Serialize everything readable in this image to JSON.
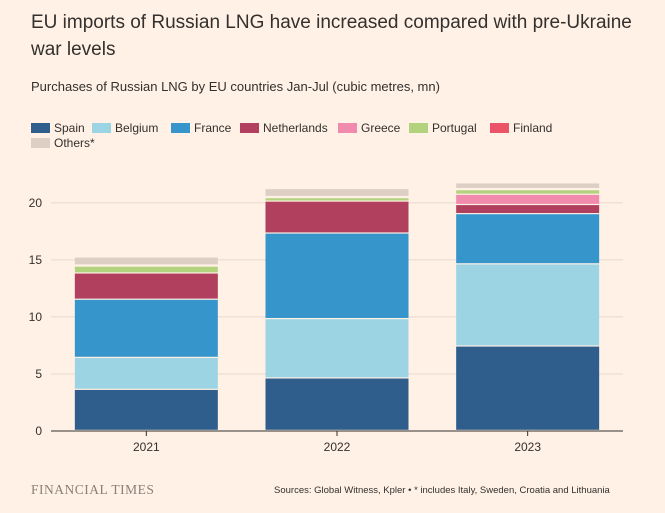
{
  "title": "EU imports of Russian LNG have increased compared with pre-Ukraine war levels",
  "subtitle": "Purchases of Russian LNG by EU countries Jan-Jul (cubic metres, mn)",
  "source": "Sources: Global Witness, Kpler • * includes Italy, Sweden, Croatia and Lithuania",
  "brand": "FINANCIAL TIMES",
  "chart_data": {
    "type": "bar",
    "stacked": true,
    "categories": [
      "2021",
      "2022",
      "2023"
    ],
    "ylim": [
      0,
      22
    ],
    "yticks": [
      0,
      5,
      10,
      15,
      20
    ],
    "grid": true,
    "legend_position": "top",
    "series": [
      {
        "name": "Spain",
        "color": "#2f5e8c",
        "values": [
          3.6,
          4.6,
          7.4
        ]
      },
      {
        "name": "Belgium",
        "color": "#9dd4e3",
        "values": [
          2.8,
          5.2,
          7.2
        ]
      },
      {
        "name": "France",
        "color": "#3695cb",
        "values": [
          5.1,
          7.5,
          4.4
        ]
      },
      {
        "name": "Netherlands",
        "color": "#b0405d",
        "values": [
          2.3,
          2.8,
          0.8
        ]
      },
      {
        "name": "Greece",
        "color": "#f08bad",
        "values": [
          0.0,
          0.0,
          0.9
        ]
      },
      {
        "name": "Portugal",
        "color": "#b3d27d",
        "values": [
          0.6,
          0.3,
          0.4
        ]
      },
      {
        "name": "Finland",
        "color": "#eb5466",
        "values": [
          0.1,
          0.1,
          0.1
        ]
      },
      {
        "name": "Others*",
        "color": "#ddcfc3",
        "values": [
          0.7,
          0.7,
          0.5
        ]
      }
    ]
  }
}
